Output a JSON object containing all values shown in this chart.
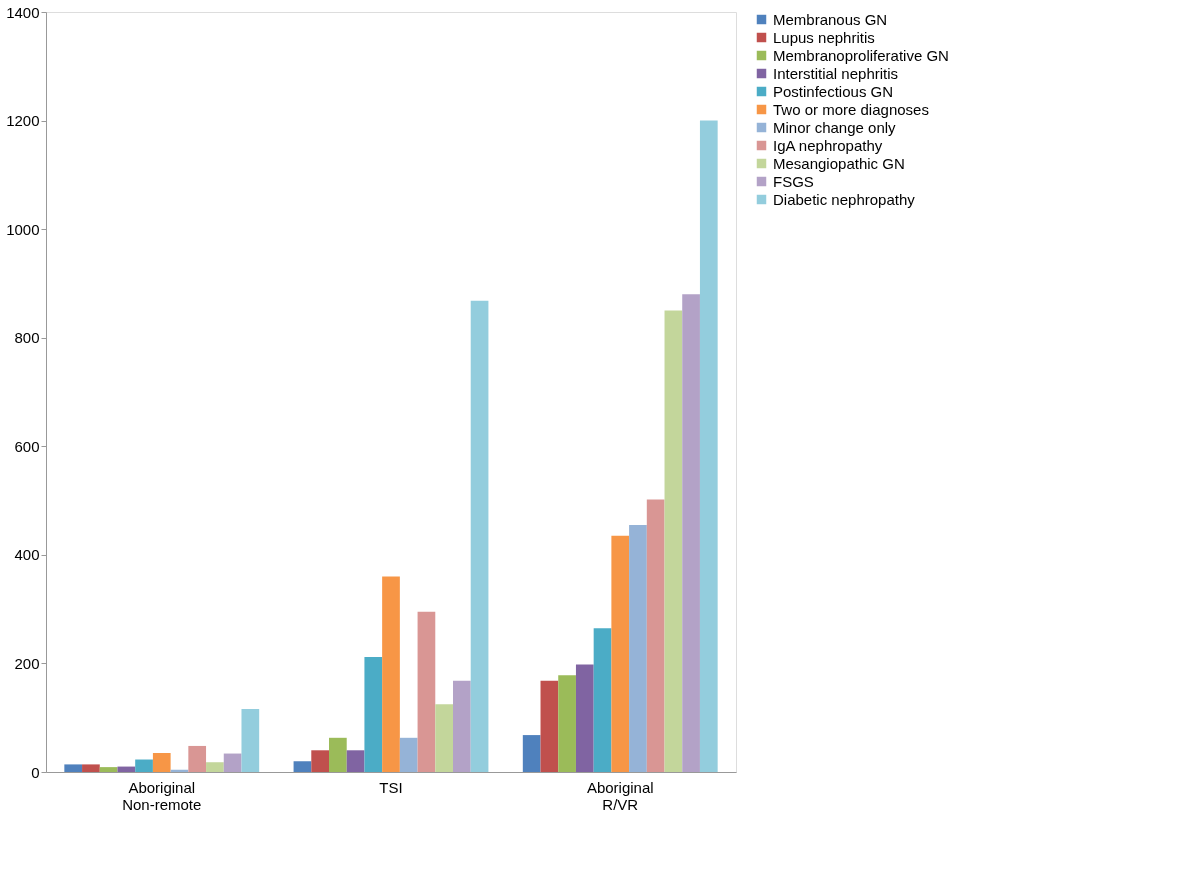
{
  "chart_data": {
    "type": "bar",
    "categories": [
      "Aboriginal Non-remote",
      "TSI",
      "Aboriginal R/VR"
    ],
    "series": [
      {
        "name": "Membranous GN",
        "color": "#4f81bd",
        "values": [
          14,
          20,
          68
        ]
      },
      {
        "name": "Lupus nephritis",
        "color": "#c0504d",
        "values": [
          14,
          40,
          168
        ]
      },
      {
        "name": "Membranoproliferative GN",
        "color": "#9bbb59",
        "values": [
          9,
          63,
          178
        ]
      },
      {
        "name": "Interstitial nephritis",
        "color": "#8064a2",
        "values": [
          10,
          40,
          198
        ]
      },
      {
        "name": "Postinfectious GN",
        "color": "#4bacc6",
        "values": [
          23,
          212,
          265
        ]
      },
      {
        "name": "Two or more diagnoses",
        "color": "#f79646",
        "values": [
          35,
          360,
          435
        ]
      },
      {
        "name": "Minor change only",
        "color": "#95b3d7",
        "values": [
          4,
          63,
          455
        ]
      },
      {
        "name": "IgA nephropathy",
        "color": "#d99694",
        "values": [
          48,
          295,
          502
        ]
      },
      {
        "name": "Mesangiopathic GN",
        "color": "#c3d69b",
        "values": [
          18,
          125,
          850
        ]
      },
      {
        "name": "FSGS",
        "color": "#b3a2c7",
        "values": [
          34,
          168,
          880
        ]
      },
      {
        "name": "Diabetic nephropathy",
        "color": "#93cddd",
        "values": [
          116,
          868,
          1200
        ]
      }
    ],
    "ylim": [
      0,
      1400
    ],
    "yticks": [
      0,
      200,
      400,
      600,
      800,
      1000,
      1200,
      1400
    ],
    "grid": false,
    "legend": "right"
  }
}
